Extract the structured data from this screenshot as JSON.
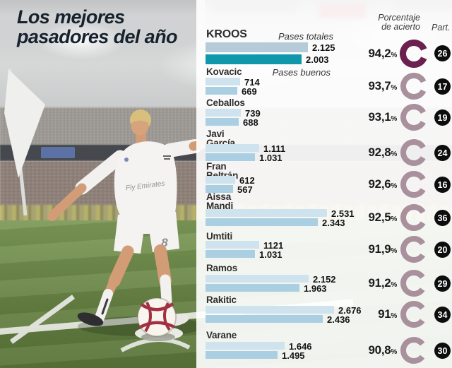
{
  "title": {
    "line1": "Los mejores",
    "line2": "pasadores del año"
  },
  "columns": {
    "accuracy_header_lines": [
      "Porcentaje",
      "de acierto"
    ],
    "participation_header": "Part.",
    "accuracy_suffix": "%"
  },
  "photo": {
    "shirt_sponsor": "Fly Emirates",
    "shorts_number": "8"
  },
  "colors": {
    "title_text": "#16222e",
    "bar_total": "#cfe3ee",
    "bar_good": "#abcfe2",
    "bar_total_highlight": "#b5cbd7",
    "bar_good_highlight": "#0f97ac",
    "donut": "#a8909c",
    "donut_highlight": "#6b2050",
    "badge_bg": "#0d0d0d",
    "badge_text": "#ffffff"
  },
  "chart_data": {
    "type": "bar",
    "orientation": "horizontal",
    "series_labels": [
      "Pases totales",
      "Pases buenos"
    ],
    "note": "accuracy donut: filled arc = accuracy %, gap at right; Part. = matches played",
    "players": [
      {
        "name": "KROOS",
        "lines": [
          "KROOS"
        ],
        "pases_totales": 2125,
        "pases_buenos": 2003,
        "total_display": "2.125",
        "good_display": "2.003",
        "accuracy": 94.2,
        "accuracy_display": "94,2",
        "part": "26",
        "highlight": true
      },
      {
        "name": "Kovacic",
        "lines": [
          "Kovacic"
        ],
        "pases_totales": 714,
        "pases_buenos": 669,
        "total_display": "714",
        "good_display": "669",
        "accuracy": 93.7,
        "accuracy_display": "93,7",
        "part": "17",
        "highlight": false
      },
      {
        "name": "Ceballos",
        "lines": [
          "Ceballos"
        ],
        "pases_totales": 739,
        "pases_buenos": 688,
        "total_display": "739",
        "good_display": "688",
        "accuracy": 93.1,
        "accuracy_display": "93,1",
        "part": "19",
        "highlight": false
      },
      {
        "name": "Javi García",
        "lines": [
          "Javi",
          "García"
        ],
        "pases_totales": 1111,
        "pases_buenos": 1031,
        "total_display": "1.111",
        "good_display": "1.031",
        "accuracy": 92.8,
        "accuracy_display": "92,8",
        "part": "24",
        "highlight": false
      },
      {
        "name": "Fran Beltrán",
        "lines": [
          "Fran",
          "Beltrán"
        ],
        "pases_totales": 612,
        "pases_buenos": 567,
        "total_display": "612",
        "good_display": "567",
        "accuracy": 92.6,
        "accuracy_display": "92,6",
        "part": "16",
        "highlight": false
      },
      {
        "name": "Aissa Mandi",
        "lines": [
          "Aissa",
          "Mandi"
        ],
        "pases_totales": 2531,
        "pases_buenos": 2343,
        "total_display": "2.531",
        "good_display": "2.343",
        "accuracy": 92.5,
        "accuracy_display": "92,5",
        "part": "36",
        "highlight": false
      },
      {
        "name": "Umtiti",
        "lines": [
          "Umtiti"
        ],
        "pases_totales": 1121,
        "pases_buenos": 1031,
        "total_display": "1121",
        "good_display": "1.031",
        "accuracy": 91.9,
        "accuracy_display": "91,9",
        "part": "20",
        "highlight": false
      },
      {
        "name": "Ramos",
        "lines": [
          "Ramos"
        ],
        "pases_totales": 2152,
        "pases_buenos": 1963,
        "total_display": "2.152",
        "good_display": "1.963",
        "accuracy": 91.2,
        "accuracy_display": "91,2",
        "part": "29",
        "highlight": false
      },
      {
        "name": "Rakitic",
        "lines": [
          "Rakitic"
        ],
        "pases_totales": 2676,
        "pases_buenos": 2436,
        "total_display": "2.676",
        "good_display": "2.436",
        "accuracy": 91.0,
        "accuracy_display": "91",
        "part": "34",
        "highlight": false
      },
      {
        "name": "Varane",
        "lines": [
          "Varane"
        ],
        "pases_totales": 1646,
        "pases_buenos": 1495,
        "total_display": "1.646",
        "good_display": "1.495",
        "accuracy": 90.8,
        "accuracy_display": "90,8",
        "part": "30",
        "highlight": false
      }
    ]
  }
}
